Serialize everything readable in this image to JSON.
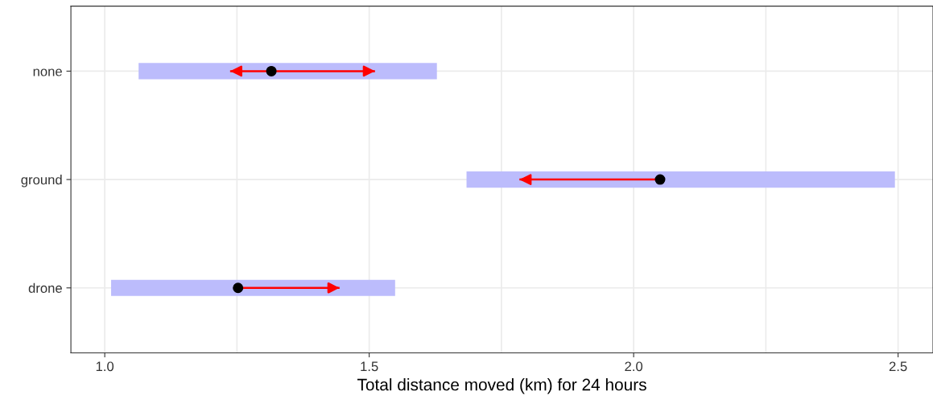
{
  "chart_data": {
    "type": "bar",
    "orientation": "horizontal",
    "xlabel": "Total distance moved (km) for 24 hours",
    "categories": [
      "none",
      "ground",
      "drone"
    ],
    "xlim": [
      0.936,
      2.566
    ],
    "xticks": [
      {
        "value": 1.0,
        "label": "1.0"
      },
      {
        "value": 1.25,
        "label": null
      },
      {
        "value": 1.5,
        "label": "1.5"
      },
      {
        "value": 1.75,
        "label": null
      },
      {
        "value": 2.0,
        "label": "2.0"
      },
      {
        "value": 2.25,
        "label": null
      },
      {
        "value": 2.5,
        "label": "2.5"
      }
    ],
    "grid": true,
    "series": [
      {
        "type": "bar",
        "color": "#bcbcfc",
        "base": [
          1.064,
          1.684,
          1.012
        ],
        "values": [
          0.564,
          0.81,
          0.537
        ]
      },
      {
        "type": "scatter",
        "color": "#000000",
        "marker": "circle",
        "values": [
          1.315,
          2.05,
          1.252
        ],
        "errors": [
          [
            1.237,
            1.511
          ],
          [
            1.784,
            2.05
          ],
          [
            1.252,
            1.444
          ]
        ]
      }
    ]
  }
}
